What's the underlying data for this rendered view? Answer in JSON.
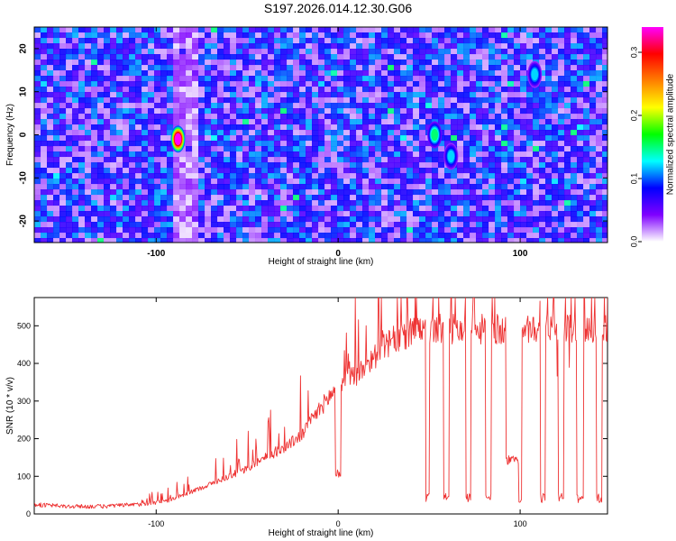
{
  "title": "S197.2026.014.12.30.G06",
  "charts": [
    {
      "type": "heatmap",
      "xlabel": "Height of straight line (km)",
      "ylabel": "Frequency (Hz)",
      "xlim": [
        -167,
        148
      ],
      "ylim": [
        -25,
        25
      ],
      "x_ticks": [
        -100,
        0,
        100
      ],
      "y_ticks": [
        -20,
        -10,
        0,
        10,
        20
      ],
      "colorbar": {
        "label": "Normalized spectral amplitude",
        "range": [
          0,
          0.34
        ],
        "ticks": [
          0,
          0.1,
          0.2,
          0.3
        ],
        "tick_labels": [
          "0.0",
          "0.1",
          "0.2",
          "0.3"
        ],
        "colors": [
          "#ffffff",
          "#7f00ff",
          "#0000ff",
          "#00ffff",
          "#00ff00",
          "#ffff00",
          "#ff7f00",
          "#ff0000",
          "#ff00ff"
        ]
      },
      "hotspots": [
        {
          "x": -88,
          "y": -1,
          "value": 0.34
        },
        {
          "x": 53,
          "y": 0,
          "value": 0.15
        },
        {
          "x": 62,
          "y": -5,
          "value": 0.12
        },
        {
          "x": 108,
          "y": 14,
          "value": 0.12
        }
      ],
      "quiet_band": {
        "x": [
          -92,
          -78
        ]
      }
    },
    {
      "type": "line",
      "xlabel": "Height of straight line (km)",
      "ylabel": "SNR (10 * v/v)",
      "xlim": [
        -167,
        148
      ],
      "ylim": [
        0,
        575
      ],
      "x_ticks": [
        -100,
        0,
        100
      ],
      "y_ticks": [
        0,
        100,
        200,
        300,
        400,
        500
      ],
      "color": "#ee3333",
      "series": [
        {
          "x": [
            -167,
            -150,
            -130,
            -110,
            -100,
            -90,
            -80,
            -70,
            -60,
            -50,
            -40,
            -30,
            -20,
            -10,
            0,
            10,
            20,
            30,
            40,
            50,
            60,
            70,
            80,
            90,
            100,
            110,
            120,
            130,
            140,
            148
          ],
          "y": [
            25,
            20,
            20,
            25,
            30,
            40,
            60,
            80,
            100,
            120,
            150,
            175,
            210,
            280,
            340,
            370,
            420,
            460,
            480,
            490,
            490,
            490,
            490,
            490,
            490,
            490,
            490,
            490,
            490,
            490
          ]
        }
      ],
      "dropouts": [
        {
          "x": [
            -1.5,
            1.5
          ],
          "min": 95
        },
        {
          "x": [
            48,
            50
          ],
          "min": 30
        },
        {
          "x": [
            58,
            61
          ],
          "min": 30
        },
        {
          "x": [
            70,
            73
          ],
          "min": 30
        },
        {
          "x": [
            81,
            84
          ],
          "min": 30
        },
        {
          "x": [
            92,
            99
          ],
          "min": 130
        },
        {
          "x": [
            99,
            101
          ],
          "min": 30
        },
        {
          "x": [
            111,
            114
          ],
          "min": 30
        },
        {
          "x": [
            121,
            124
          ],
          "min": 30
        },
        {
          "x": [
            131,
            135
          ],
          "min": 30
        },
        {
          "x": [
            142,
            145
          ],
          "min": 30
        }
      ]
    }
  ]
}
